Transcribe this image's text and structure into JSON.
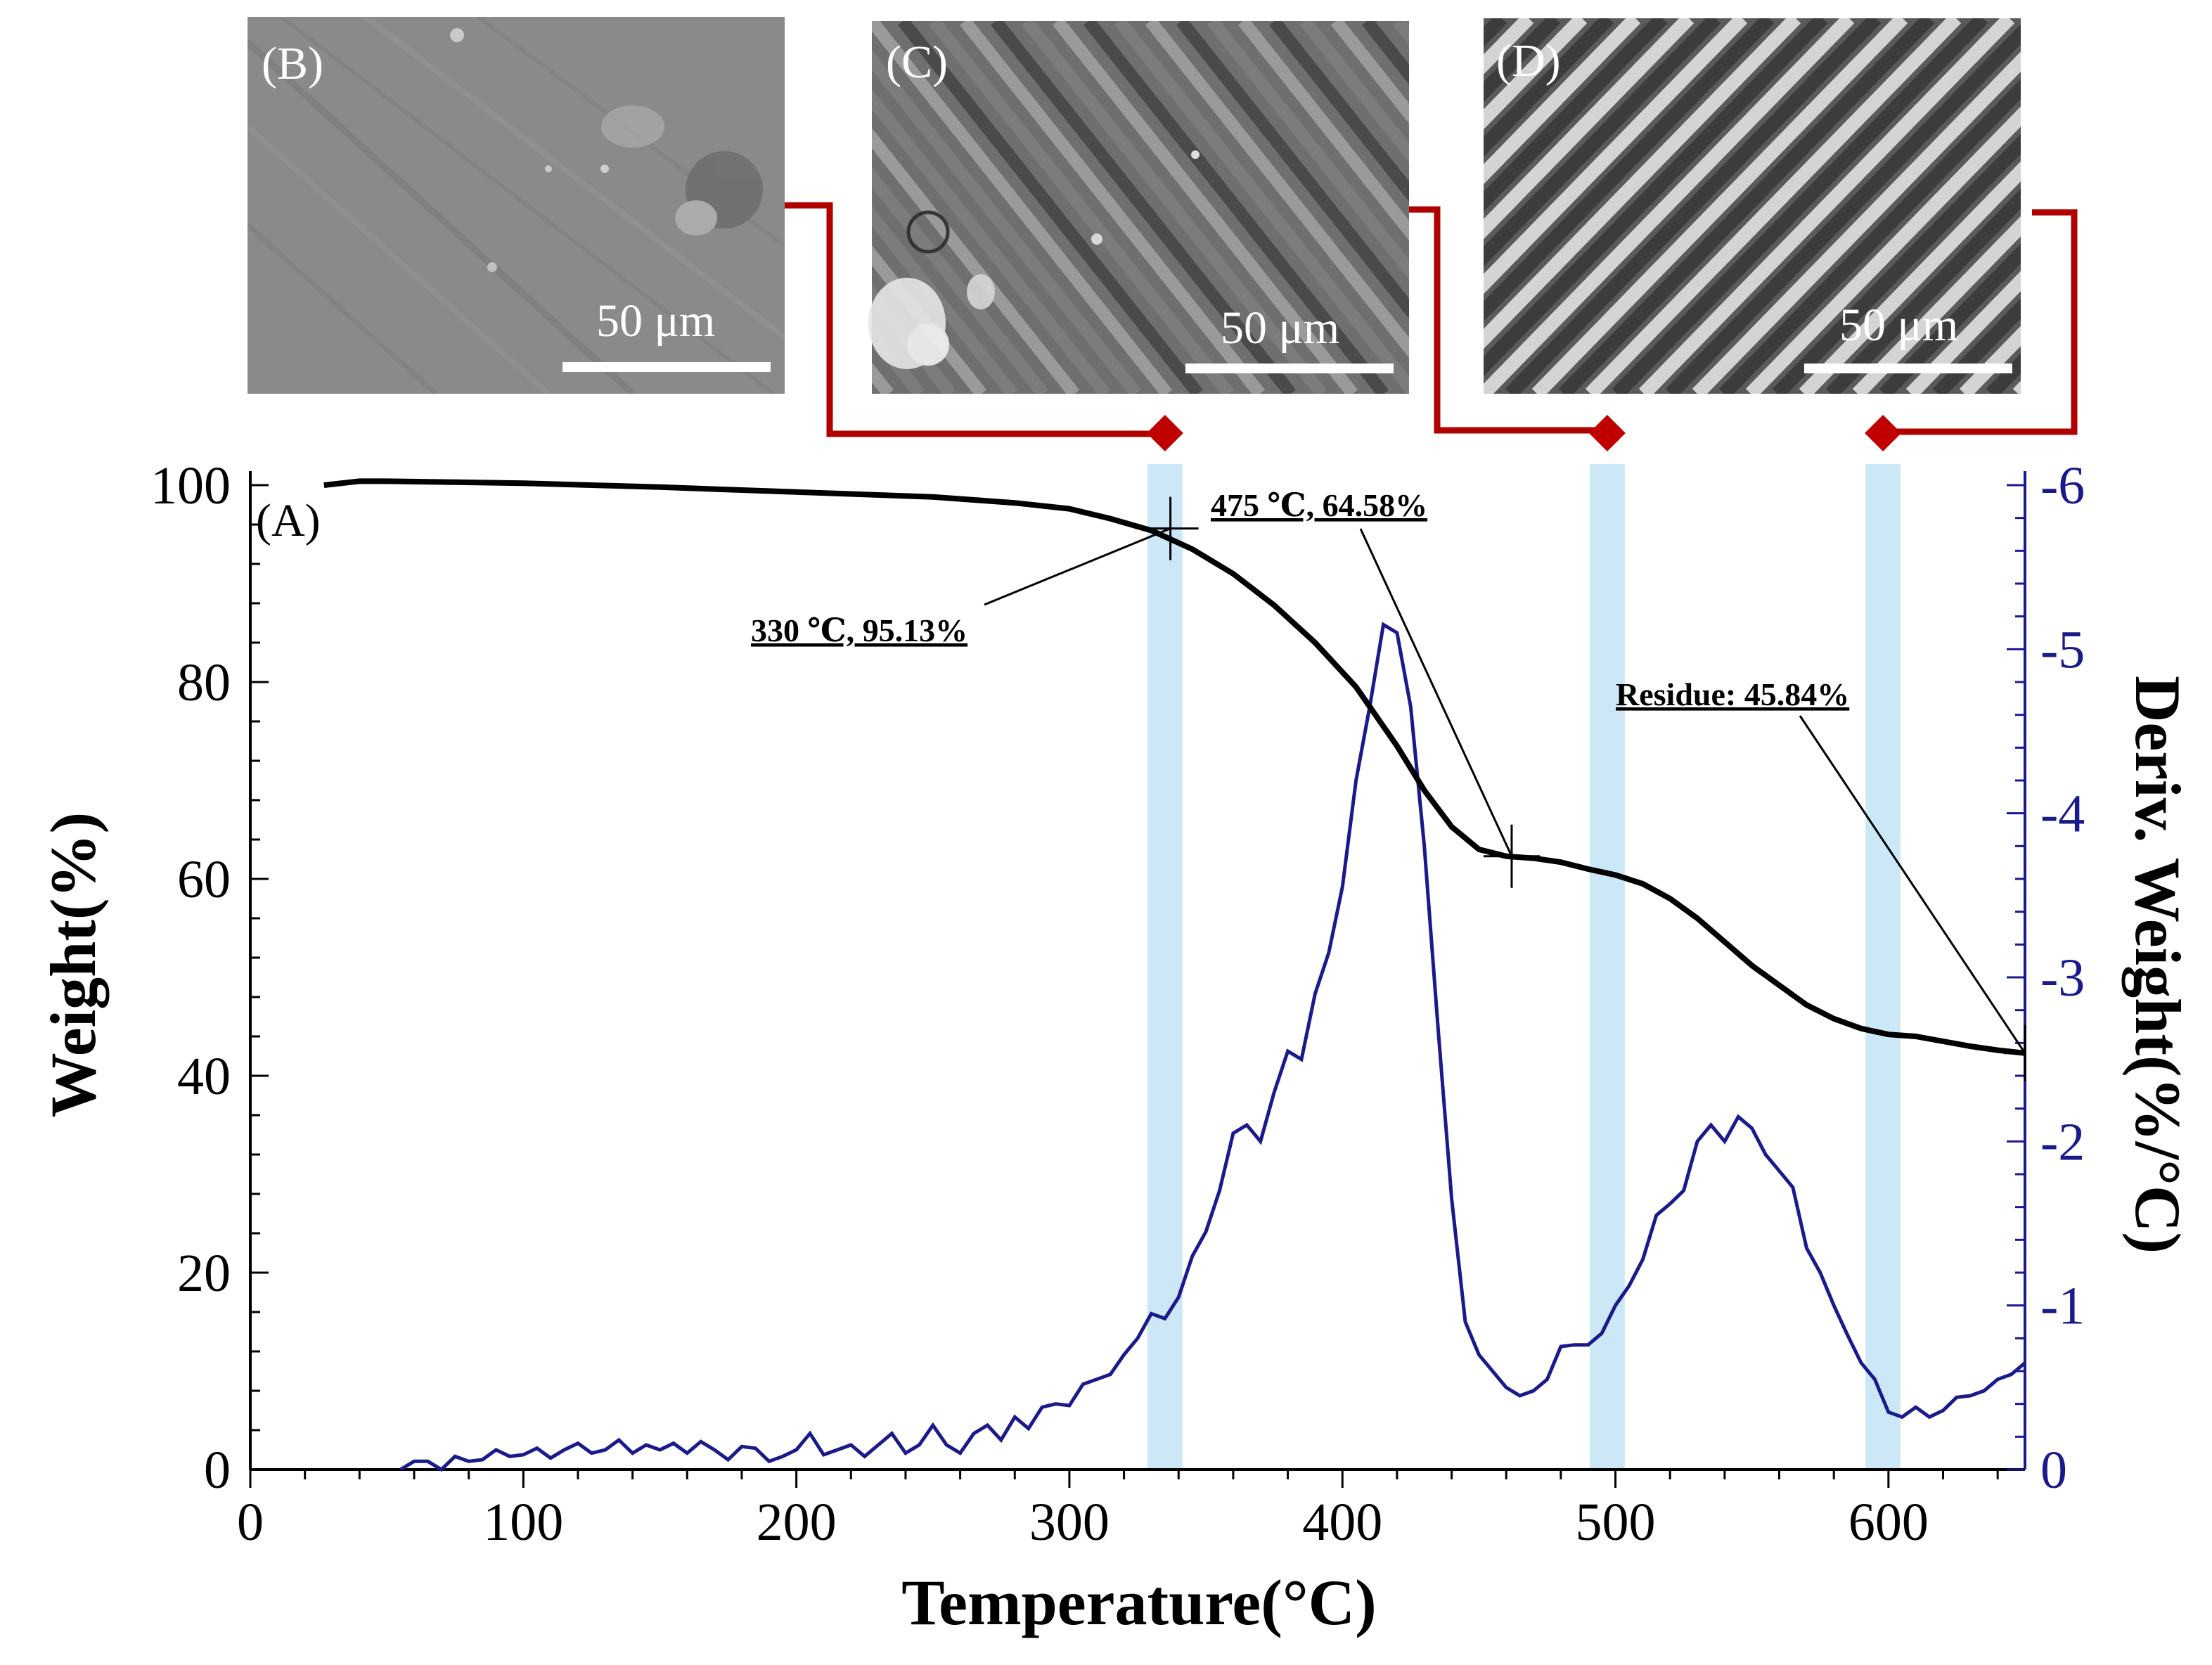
{
  "colors": {
    "weight_line": "#000000",
    "deriv_line": "#1a1a8c",
    "highlight_band": "#cce8f6",
    "connector": "#b00000",
    "marker": "#c00000",
    "right_axis": "#1a1a8c"
  },
  "sem_images": [
    {
      "label": "(B)",
      "scale": "50 μm",
      "texture": "smooth-debris"
    },
    {
      "label": "(C)",
      "scale": "50 μm",
      "texture": "fibers-with-debris"
    },
    {
      "label": "(D)",
      "scale": "50 μm",
      "texture": "clean-fibers"
    }
  ],
  "chart_data": {
    "type": "line",
    "panel_label": "(A)",
    "xlabel": "Temperature(°C)",
    "ylabel": "Weight(%)",
    "y2label": "Deriv. Weight(%/°C)",
    "xlim": [
      0,
      650
    ],
    "ylim": [
      0,
      100
    ],
    "y2lim": [
      0,
      -6
    ],
    "xticks": [
      "0",
      "100",
      "200",
      "300",
      "400",
      "500",
      "600"
    ],
    "yticks": [
      "0",
      "20",
      "40",
      "60",
      "80",
      "100"
    ],
    "y2ticks": [
      "0",
      "-1",
      "-2",
      "-3",
      "-4",
      "-5",
      "-6"
    ],
    "highlight_temperatures": [
      335,
      497,
      598
    ],
    "series": [
      {
        "name": "Weight",
        "axis": "left",
        "x": [
          27,
          40,
          50,
          75,
          100,
          150,
          200,
          250,
          280,
          300,
          315,
          330,
          345,
          360,
          375,
          390,
          405,
          420,
          430,
          440,
          450,
          460,
          470,
          480,
          490,
          500,
          510,
          520,
          530,
          540,
          550,
          560,
          570,
          580,
          590,
          600,
          610,
          620,
          630,
          640,
          650
        ],
        "values": [
          100.0,
          100.4,
          100.4,
          100.3,
          100.2,
          99.8,
          99.3,
          98.8,
          98.2,
          97.6,
          96.6,
          95.4,
          93.5,
          91.0,
          87.8,
          84.0,
          79.5,
          73.5,
          69.0,
          65.3,
          63.0,
          62.3,
          62.1,
          61.7,
          61.0,
          60.4,
          59.5,
          58.0,
          56.0,
          53.6,
          51.2,
          49.2,
          47.2,
          45.8,
          44.8,
          44.2,
          44.0,
          43.5,
          43.0,
          42.6,
          42.3
        ]
      },
      {
        "name": "Deriv. Weight",
        "axis": "right",
        "x": [
          55,
          60,
          65,
          70,
          75,
          80,
          85,
          90,
          95,
          100,
          105,
          110,
          115,
          120,
          125,
          130,
          135,
          140,
          145,
          150,
          155,
          160,
          165,
          170,
          175,
          180,
          185,
          190,
          195,
          200,
          205,
          210,
          215,
          220,
          225,
          230,
          235,
          240,
          245,
          250,
          255,
          260,
          265,
          270,
          275,
          280,
          285,
          290,
          295,
          300,
          305,
          310,
          315,
          320,
          325,
          330,
          335,
          340,
          345,
          350,
          355,
          360,
          365,
          370,
          375,
          380,
          385,
          390,
          395,
          400,
          405,
          410,
          415,
          420,
          425,
          430,
          435,
          440,
          445,
          450,
          455,
          460,
          465,
          470,
          475,
          480,
          485,
          490,
          495,
          500,
          505,
          510,
          515,
          520,
          525,
          530,
          535,
          540,
          545,
          550,
          555,
          560,
          565,
          570,
          575,
          580,
          585,
          590,
          595,
          600,
          605,
          610,
          615,
          620,
          625,
          630,
          635,
          640,
          645,
          650
        ],
        "values": [
          0.0,
          -0.05,
          -0.05,
          0.0,
          -0.08,
          -0.05,
          -0.06,
          -0.12,
          -0.08,
          -0.09,
          -0.13,
          -0.07,
          -0.12,
          -0.16,
          -0.1,
          -0.12,
          -0.18,
          -0.1,
          -0.15,
          -0.12,
          -0.16,
          -0.1,
          -0.17,
          -0.12,
          -0.06,
          -0.14,
          -0.13,
          -0.05,
          -0.08,
          -0.12,
          -0.22,
          -0.09,
          -0.12,
          -0.15,
          -0.08,
          -0.15,
          -0.22,
          -0.1,
          -0.15,
          -0.27,
          -0.15,
          -0.1,
          -0.22,
          -0.27,
          -0.18,
          -0.32,
          -0.25,
          -0.38,
          -0.4,
          -0.39,
          -0.52,
          -0.55,
          -0.58,
          -0.7,
          -0.8,
          -0.95,
          -0.92,
          -1.05,
          -1.3,
          -1.45,
          -1.7,
          -2.05,
          -2.1,
          -2.0,
          -2.3,
          -2.55,
          -2.5,
          -2.9,
          -3.15,
          -3.55,
          -4.2,
          -4.65,
          -5.15,
          -5.1,
          -4.65,
          -3.8,
          -2.7,
          -1.65,
          -0.9,
          -0.7,
          -0.6,
          -0.5,
          -0.45,
          -0.48,
          -0.55,
          -0.75,
          -0.76,
          -0.76,
          -0.83,
          -1.0,
          -1.12,
          -1.28,
          -1.55,
          -1.62,
          -1.7,
          -2.0,
          -2.1,
          -2.0,
          -2.15,
          -2.08,
          -1.92,
          -1.82,
          -1.72,
          -1.35,
          -1.2,
          -1.0,
          -0.82,
          -0.65,
          -0.55,
          -0.35,
          -0.32,
          -0.38,
          -0.32,
          -0.36,
          -0.44,
          -0.45,
          -0.48,
          -0.55,
          -0.58,
          -0.65
        ]
      }
    ],
    "annotations": [
      {
        "text": "330 ℃, 95.13%",
        "x": 337,
        "y": 95.6
      },
      {
        "text": "475 ℃, 64.58%",
        "x": 462,
        "y": 62.3
      },
      {
        "text": "Residue: 45.84%",
        "x": 650,
        "y": 42.3
      }
    ]
  }
}
